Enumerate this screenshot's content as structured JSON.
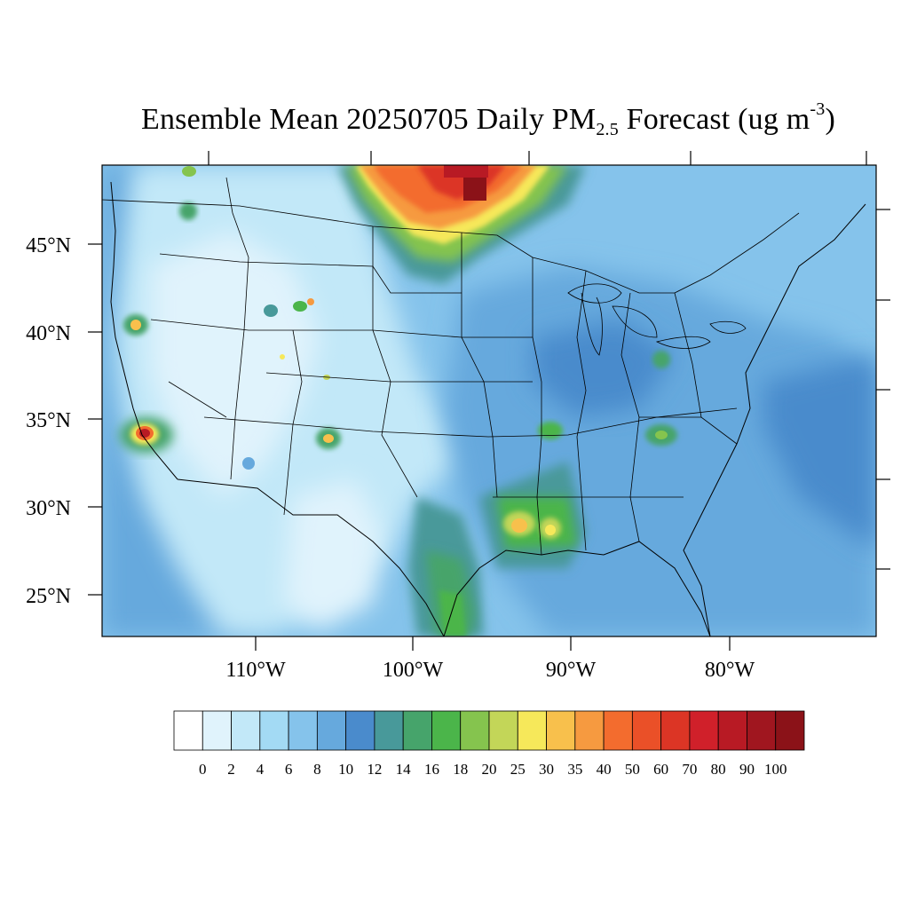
{
  "title": {
    "prefix": "Ensemble Mean 20250705 Daily PM",
    "subscript": "2.5",
    "middle": " Forecast (ug m",
    "superscript": "-3",
    "suffix": ")"
  },
  "map": {
    "projection": "Lambert conformal (CONUS)",
    "lat_labels": [
      "45°N",
      "40°N",
      "35°N",
      "30°N",
      "25°N"
    ],
    "lon_labels": [
      "110°W",
      "100°W",
      "90°W",
      "80°W"
    ],
    "plumes": [
      {
        "name": "canada-smoke-plume",
        "peak_ugm3": 100,
        "region": "Southern Manitoba / North Dakota border"
      },
      {
        "name": "southern-california-hotspot",
        "peak_ugm3": 80,
        "region": "Los Angeles basin"
      },
      {
        "name": "louisiana-hotspot",
        "peak_ugm3": 40,
        "region": "Southern Louisiana"
      },
      {
        "name": "new-mexico-hotspot",
        "peak_ugm3": 30,
        "region": "Central New Mexico"
      },
      {
        "name": "northern-california-hotspot",
        "peak_ugm3": 30,
        "region": "Northern California"
      }
    ]
  },
  "colorbar": {
    "labels": [
      "0",
      "2",
      "4",
      "6",
      "8",
      "10",
      "12",
      "14",
      "16",
      "18",
      "20",
      "25",
      "30",
      "35",
      "40",
      "50",
      "60",
      "70",
      "80",
      "90",
      "100"
    ],
    "colors": [
      "#ffffff",
      "#e0f3fc",
      "#c2e8f8",
      "#a3daf4",
      "#85c3eb",
      "#66a9dd",
      "#4a8bcc",
      "#48999a",
      "#46a46b",
      "#4bb54a",
      "#85c44e",
      "#c3d658",
      "#f6e85a",
      "#f8c04c",
      "#f69a40",
      "#f36c2e",
      "#ea5028",
      "#dc3525",
      "#d0202a",
      "#b81a24",
      "#a0161f",
      "#8b1218"
    ]
  }
}
